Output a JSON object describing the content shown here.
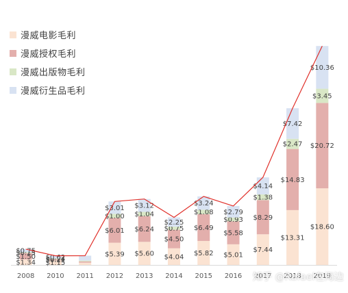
{
  "chart_data": {
    "type": "bar",
    "stacked": true,
    "categories": [
      "2008",
      "2010",
      "2011",
      "2012",
      "2013",
      "2014",
      "2015",
      "2016",
      "2017",
      "2018",
      "2019"
    ],
    "series": [
      {
        "name": "漫威电影毛利",
        "color": "#fbe3d2",
        "values": [
          1.34,
          1.15,
          0.55,
          5.39,
          5.6,
          4.04,
          5.82,
          5.01,
          7.44,
          13.31,
          18.6
        ],
        "labels": [
          "$1.34",
          "$1.15",
          "",
          "$5.39",
          "$5.60",
          "$4.04",
          "$5.82",
          "$5.01",
          "$7.44",
          "$13.31",
          "$18.60"
        ]
      },
      {
        "name": "漫威授权毛利",
        "color": "#e3afac",
        "values": [
          1.5,
          0.21,
          0.3,
          6.01,
          6.24,
          4.5,
          6.49,
          5.58,
          8.29,
          14.83,
          20.72
        ],
        "labels": [
          "$1.50",
          "$0.21",
          "",
          "$6.01",
          "$6.24",
          "$4.50",
          "$6.49",
          "$5.58",
          "$8.29",
          "$14.83",
          "$20.72"
        ]
      },
      {
        "name": "漫威出版物毛利",
        "color": "#d9e7c6",
        "values": [
          0.25,
          0.24,
          0.2,
          1.0,
          1.04,
          0.75,
          1.08,
          0.93,
          1.38,
          2.47,
          3.45
        ],
        "labels": [
          "$0.25",
          "$0.24",
          "",
          "$1.00",
          "$1.04",
          "$0.75",
          "$1.08",
          "$0.93",
          "$1.38",
          "$2.47",
          "$3.45"
        ]
      },
      {
        "name": "漫威衍生品毛利",
        "color": "#d8e2f2",
        "values": [
          0.75,
          0.62,
          1.2,
          3.01,
          3.12,
          2.25,
          3.24,
          2.79,
          4.14,
          7.42,
          10.36
        ],
        "labels": [
          "$0.75",
          "$0.62",
          "",
          "$3.01",
          "$3.12",
          "$2.25",
          "$3.24",
          "$2.79",
          "$4.14",
          "$7.42",
          "$10.36"
        ]
      }
    ],
    "total_line_color": "#e0302a",
    "ylim": [
      0,
      54
    ],
    "legend_position": "top-left",
    "grid": false,
    "title": "",
    "xlabel": "",
    "ylabel": ""
  },
  "watermark": "知乎 @Rafael在海边"
}
